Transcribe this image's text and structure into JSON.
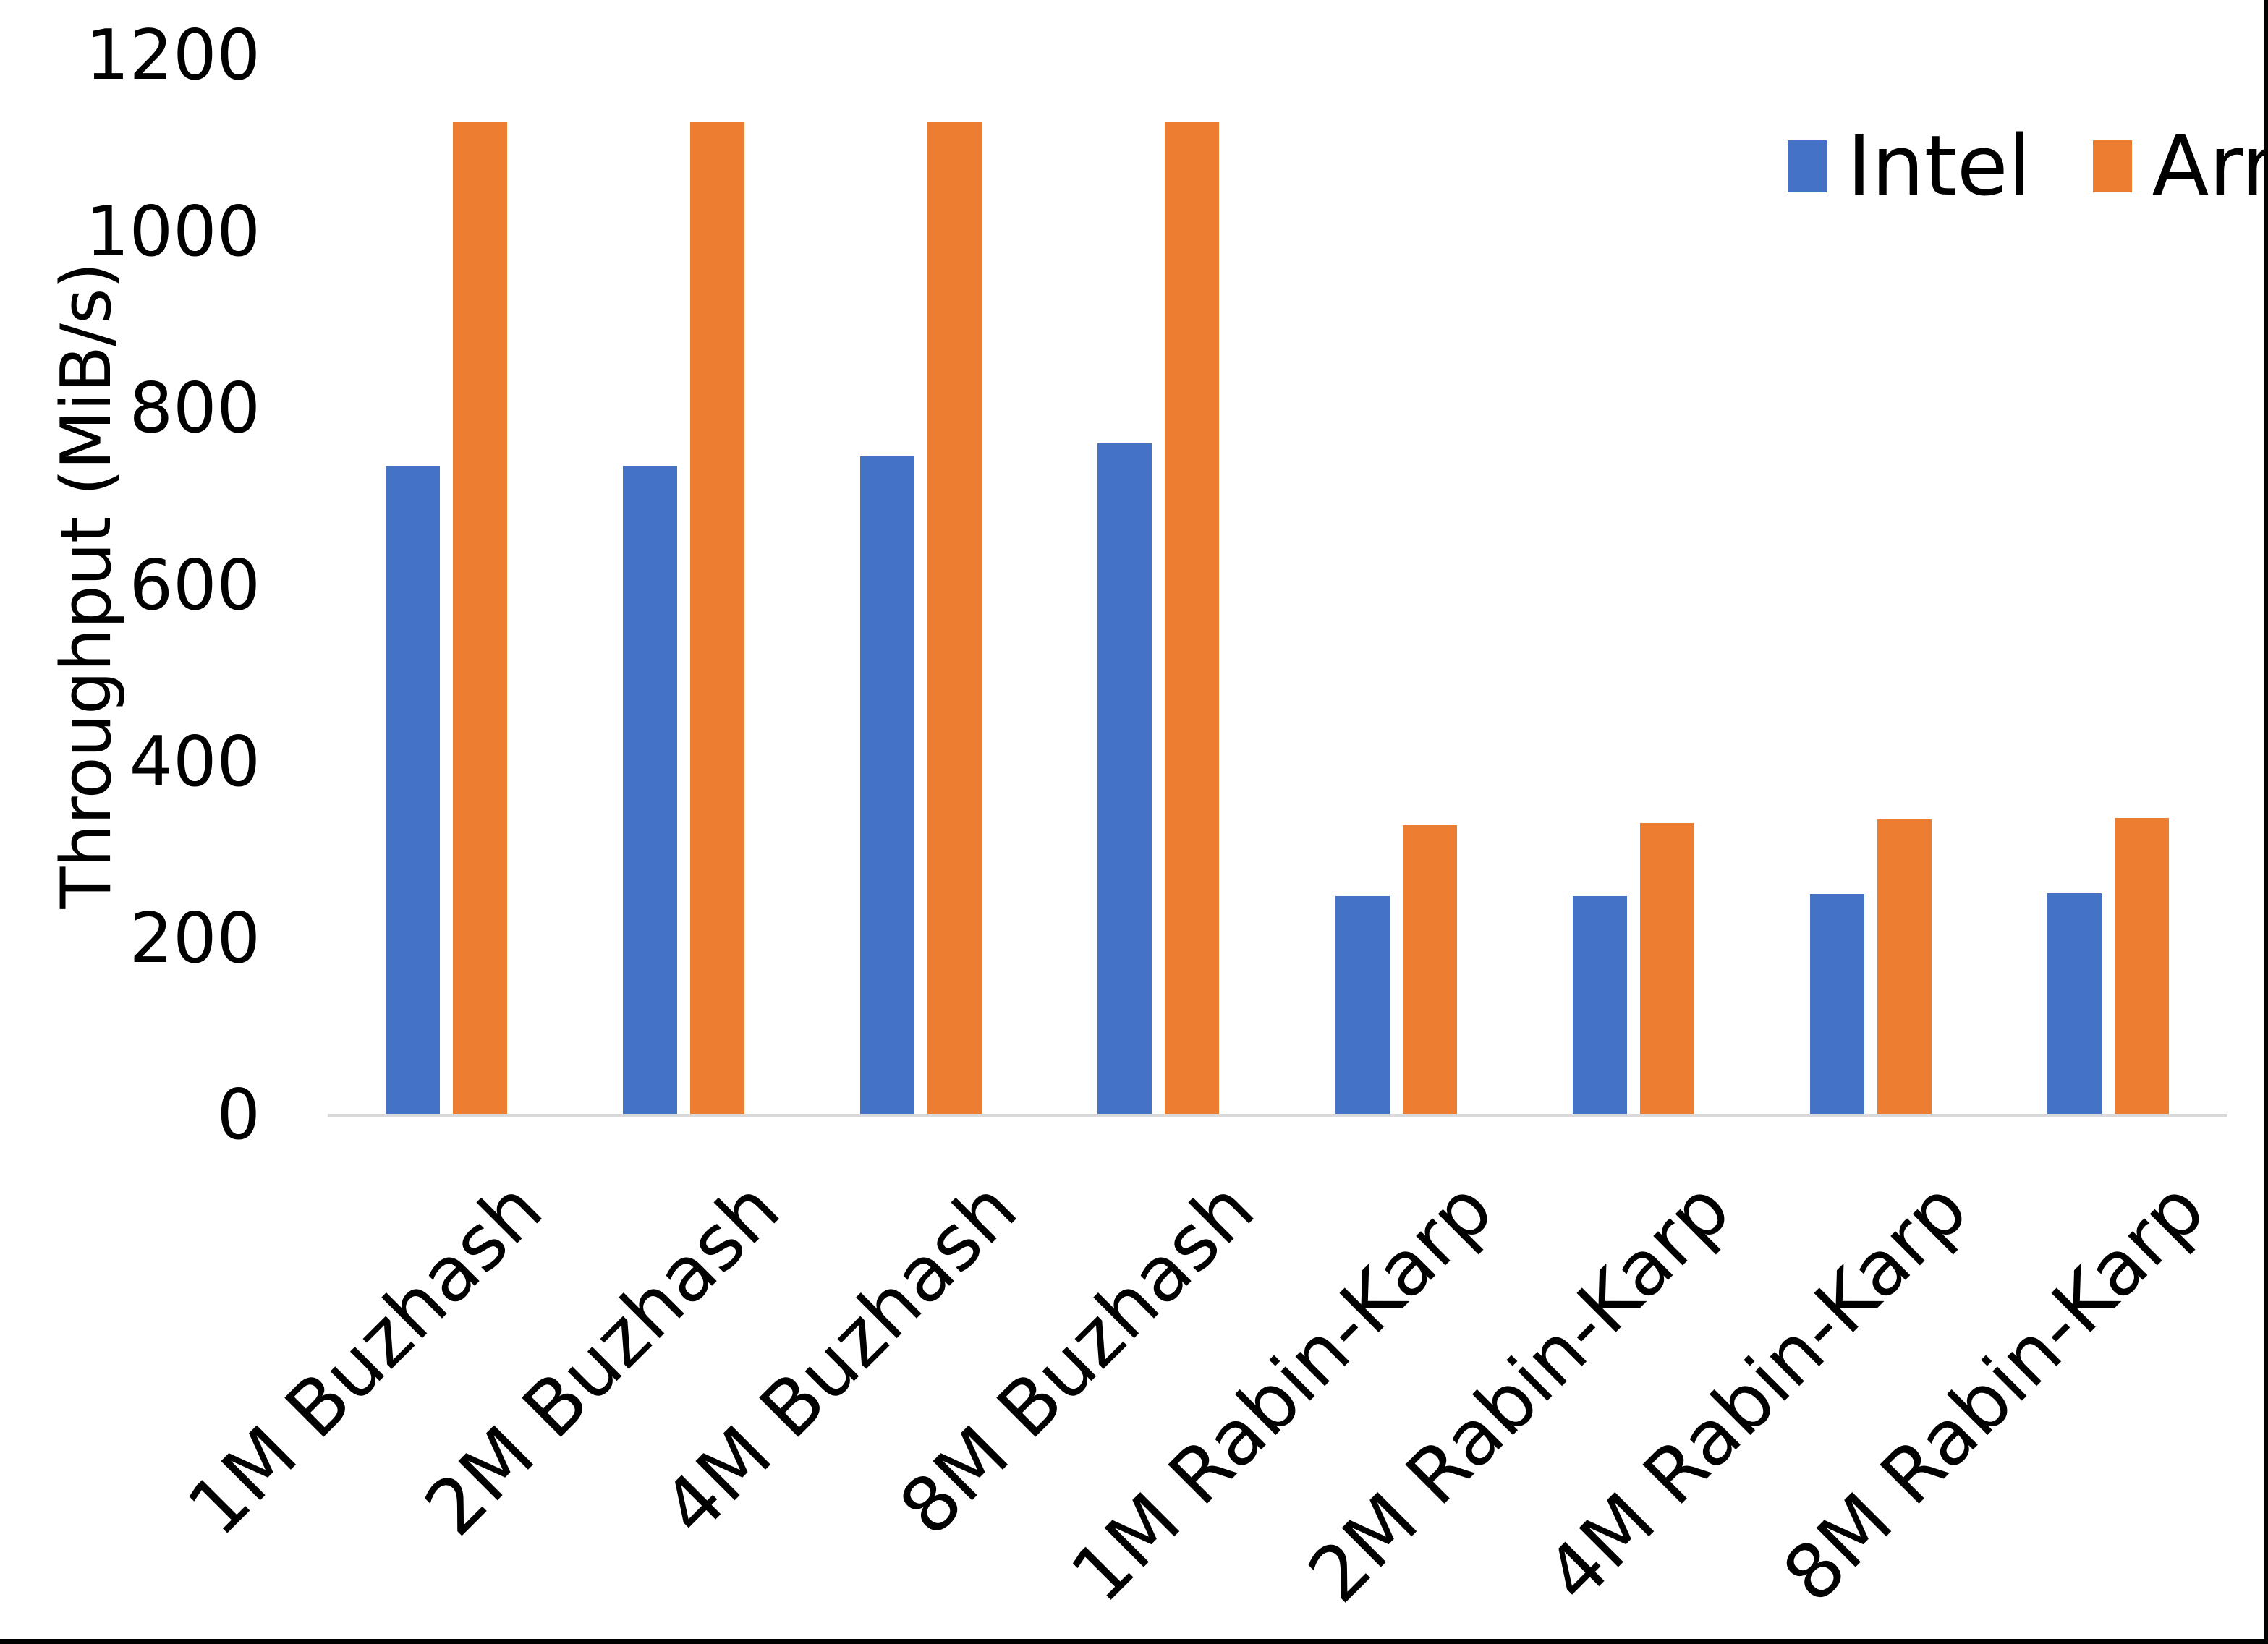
{
  "page": {
    "background": "#ffffff",
    "edge_color": "#000000"
  },
  "chart_data": {
    "type": "bar",
    "title": "",
    "ylabel": "Throughput (MiB/s)",
    "xlabel": "",
    "ylim": [
      0,
      1200
    ],
    "yticks": [
      0,
      200,
      400,
      600,
      800,
      1000,
      1200
    ],
    "grid": false,
    "legend_position": "top-right",
    "axis_line_color": "#d9d9d9",
    "text_color": "#000000",
    "categories": [
      "1M Buzhash",
      "2M Buzhash",
      "4M Buzhash",
      "8M Buzhash",
      "1M Rabin-Karp",
      "2M Rabin-Karp",
      "4M Rabin-Karp",
      "8M Rabin-Karp"
    ],
    "series": [
      {
        "name": "Intel",
        "color": "#4472c4",
        "values": [
          735,
          735,
          745,
          760,
          247,
          247,
          250,
          251
        ]
      },
      {
        "name": "Arm",
        "color": "#ed7d31",
        "values": [
          1125,
          1125,
          1125,
          1125,
          328,
          330,
          334,
          336
        ]
      }
    ]
  }
}
